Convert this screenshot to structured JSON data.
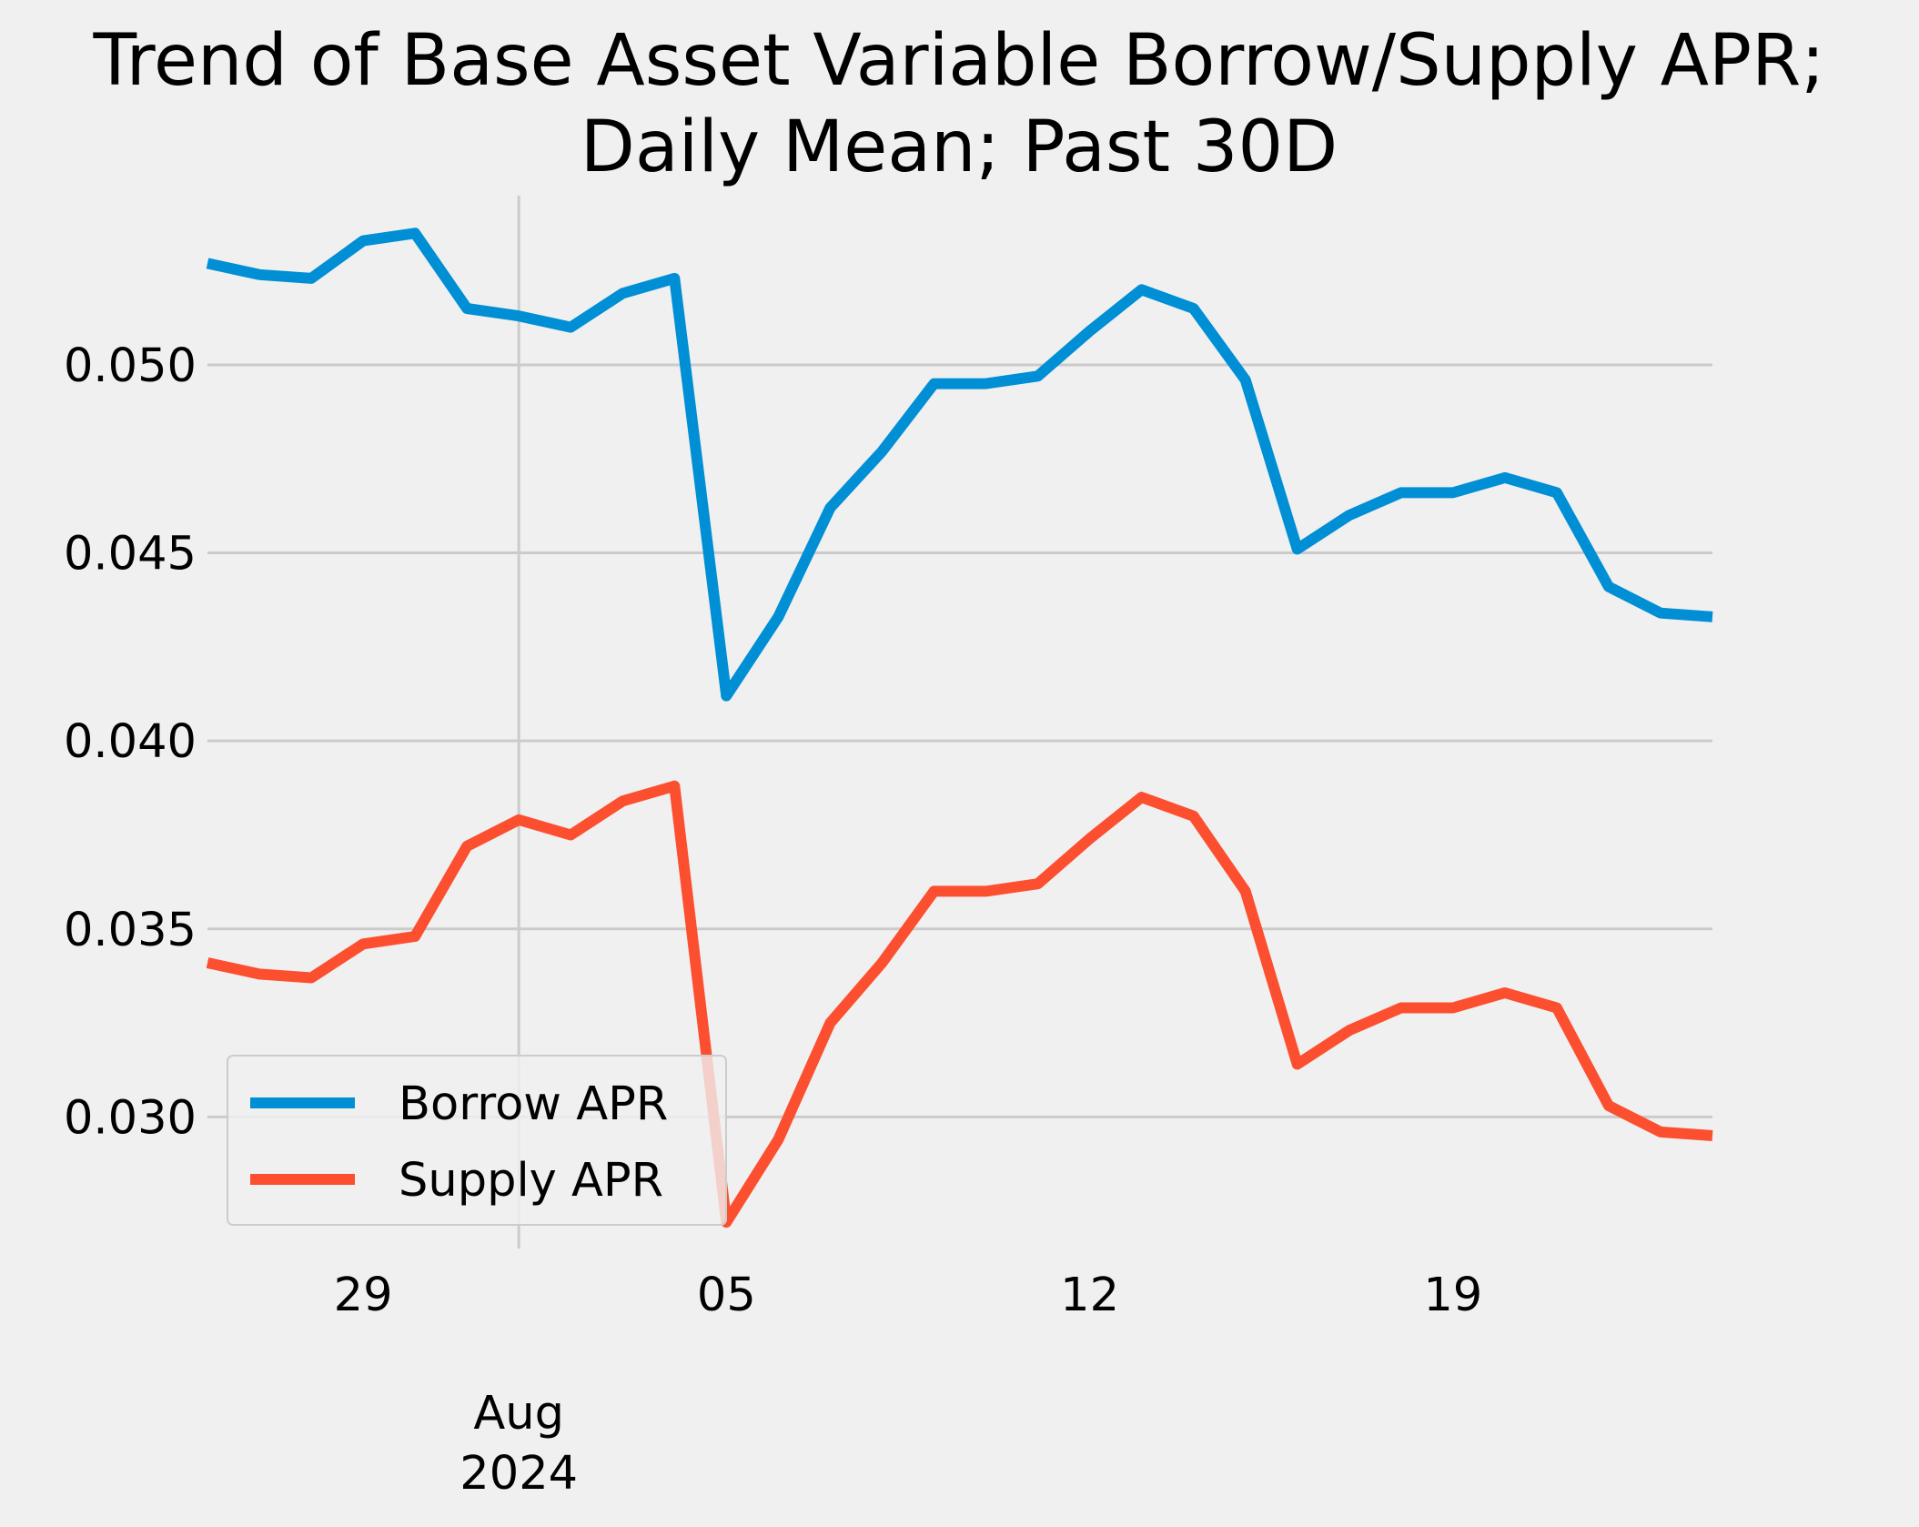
{
  "chart_data": {
    "type": "line",
    "title_lines": [
      "Trend of Base Asset Variable Borrow/Supply APR;",
      "Daily Mean; Past 30D"
    ],
    "xlabel": "",
    "ylabel": "",
    "x": [
      "2024-07-26",
      "2024-07-27",
      "2024-07-28",
      "2024-07-29",
      "2024-07-30",
      "2024-07-31",
      "2024-08-01",
      "2024-08-02",
      "2024-08-03",
      "2024-08-04",
      "2024-08-05",
      "2024-08-06",
      "2024-08-07",
      "2024-08-08",
      "2024-08-09",
      "2024-08-10",
      "2024-08-11",
      "2024-08-12",
      "2024-08-13",
      "2024-08-14",
      "2024-08-15",
      "2024-08-16",
      "2024-08-17",
      "2024-08-18",
      "2024-08-19",
      "2024-08-20",
      "2024-08-21",
      "2024-08-22",
      "2024-08-23",
      "2024-08-24"
    ],
    "series": [
      {
        "name": "Borrow APR",
        "color": "#008fd5",
        "values": [
          0.0527,
          0.0524,
          0.0523,
          0.0533,
          0.0535,
          0.0515,
          0.0513,
          0.051,
          0.0519,
          0.0523,
          0.0412,
          0.0433,
          0.0462,
          0.0477,
          0.0495,
          0.0495,
          0.0497,
          0.0509,
          0.052,
          0.0515,
          0.0496,
          0.0451,
          0.046,
          0.0466,
          0.0466,
          0.047,
          0.0466,
          0.0441,
          0.0434,
          0.0433
        ]
      },
      {
        "name": "Supply APR",
        "color": "#fc4f30",
        "values": [
          0.0341,
          0.0338,
          0.0337,
          0.0346,
          0.0348,
          0.0372,
          0.0379,
          0.0375,
          0.0384,
          0.0388,
          0.0272,
          0.0294,
          0.0325,
          0.0341,
          0.036,
          0.036,
          0.0362,
          0.0374,
          0.0385,
          0.038,
          0.036,
          0.0314,
          0.0323,
          0.0329,
          0.0329,
          0.0333,
          0.0329,
          0.0303,
          0.0296,
          0.0295
        ]
      }
    ],
    "xticks": [
      {
        "date": "2024-07-29",
        "label": "29"
      },
      {
        "date": "2024-08-05",
        "label": "05"
      },
      {
        "date": "2024-08-12",
        "label": "12"
      },
      {
        "date": "2024-08-19",
        "label": "19"
      }
    ],
    "major_xtick": {
      "date": "2024-08-01",
      "label_lines": [
        "Aug",
        "2024"
      ]
    },
    "yticks": [
      0.03,
      0.035,
      0.04,
      0.045,
      0.05
    ],
    "ylim": [
      0.0265,
      0.0545
    ],
    "xlim": [
      "2024-07-26",
      "2024-08-24"
    ],
    "grid": true,
    "legend_position": "lower-left",
    "style": "fivethirtyeight"
  }
}
